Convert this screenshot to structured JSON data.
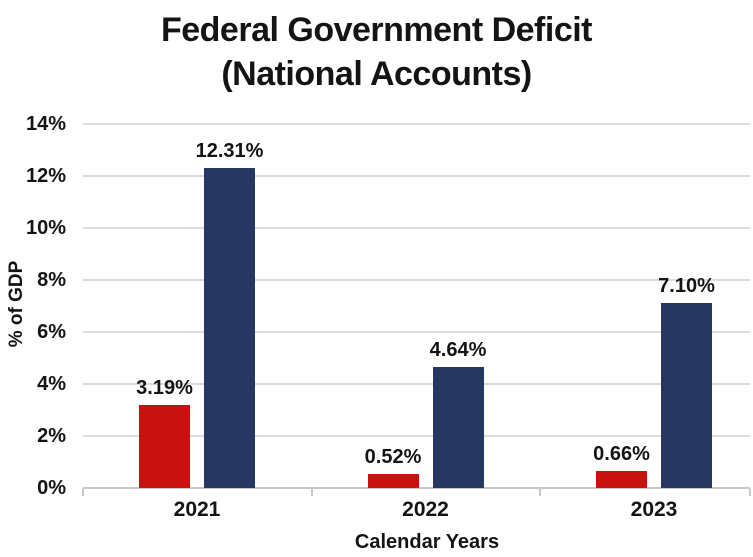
{
  "title": {
    "line1": "Federal Government Deficit",
    "line2": "(National Accounts)"
  },
  "colors": {
    "red_bar": "#C91111",
    "navy_bar": "#263761",
    "grid": "#DCDCDC",
    "axis": "#C8C8C8",
    "text": "#141414",
    "background": "#FFFFFF"
  },
  "chart_data": {
    "type": "bar",
    "title": "Federal Government Deficit (National Accounts)",
    "xlabel": "Calendar Years",
    "ylabel": "% of GDP",
    "categories": [
      "2021",
      "2022",
      "2023"
    ],
    "series": [
      {
        "name": "red",
        "color": "#C91111",
        "values": [
          3.19,
          0.52,
          0.66
        ],
        "labels": [
          "3.19%",
          "0.52%",
          "0.66%"
        ]
      },
      {
        "name": "navy",
        "color": "#263761",
        "values": [
          12.31,
          4.64,
          7.1
        ],
        "labels": [
          "12.31%",
          "4.64%",
          "7.10%"
        ]
      }
    ],
    "ylim": [
      0,
      14
    ],
    "ytick_step": 2,
    "ytick_labels": [
      "0%",
      "2%",
      "4%",
      "6%",
      "8%",
      "10%",
      "12%",
      "14%"
    ],
    "grid": true,
    "legend": false
  }
}
